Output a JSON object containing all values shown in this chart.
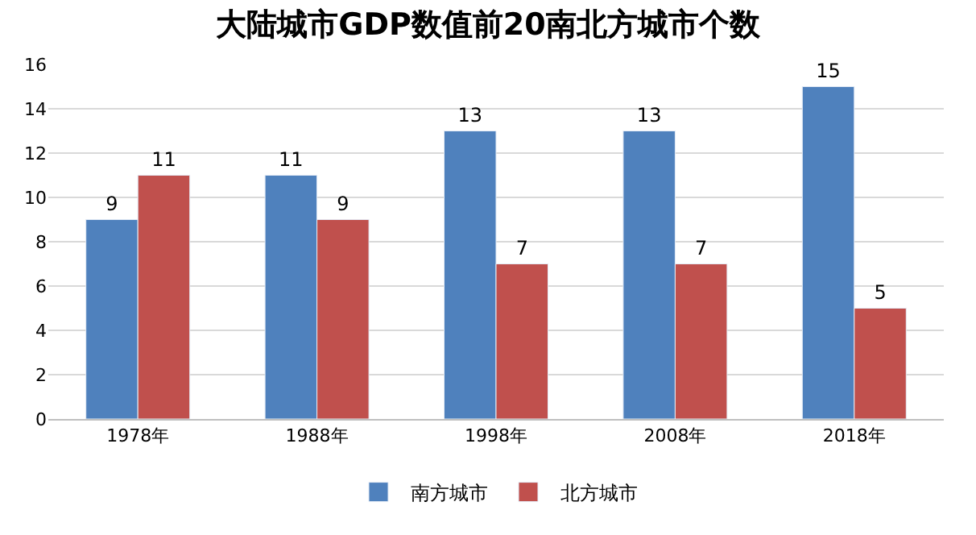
{
  "chart_data": {
    "type": "bar",
    "title": "大陆城市GDP数值前20南北方城市个数",
    "categories": [
      "1978年",
      "1988年",
      "1998年",
      "2008年",
      "2018年"
    ],
    "series": [
      {
        "name": "南方城市",
        "color": "#4f81bd",
        "values": [
          9,
          11,
          13,
          13,
          15
        ]
      },
      {
        "name": "北方城市",
        "color": "#c0504d",
        "values": [
          11,
          9,
          7,
          7,
          5
        ]
      }
    ],
    "ylim": [
      0,
      16
    ],
    "yticks": [
      0,
      2,
      4,
      6,
      8,
      10,
      12,
      14,
      16
    ],
    "grid": "y",
    "legend": "bottom",
    "data_labels": true
  }
}
